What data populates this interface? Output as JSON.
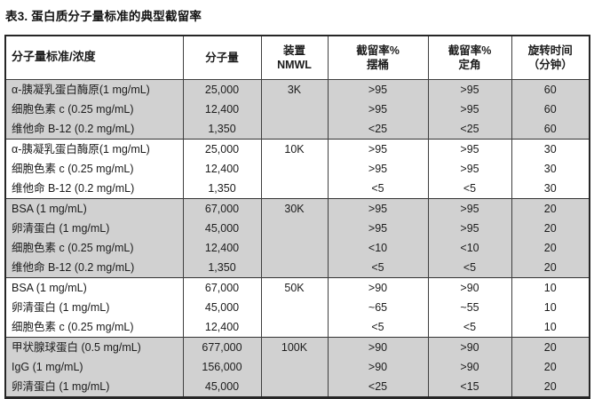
{
  "title": "表3. 蛋白质分子量标准的典型截留率",
  "table": {
    "headers": [
      "分子量标准/浓度",
      "分子量",
      "装置\nNMWL",
      "截留率%\n摆桶",
      "截留率%\n定角",
      "旋转时间\n（分钟）"
    ],
    "groups": [
      {
        "nmwl": "3K",
        "shaded": true,
        "rows": [
          {
            "standard": "α-胰凝乳蛋白酶原(1 mg/mL)",
            "mw": "25,000",
            "bucket": ">95",
            "angle": ">95",
            "time": "60"
          },
          {
            "standard": "细胞色素 c (0.25 mg/mL)",
            "mw": "12,400",
            "bucket": ">95",
            "angle": ">95",
            "time": "60"
          },
          {
            "standard": "维他命 B-12 (0.2 mg/mL)",
            "mw": "1,350",
            "bucket": "<25",
            "angle": "<25",
            "time": "60"
          }
        ]
      },
      {
        "nmwl": "10K",
        "shaded": false,
        "rows": [
          {
            "standard": "α-胰凝乳蛋白酶原(1 mg/mL)",
            "mw": "25,000",
            "bucket": ">95",
            "angle": ">95",
            "time": "30"
          },
          {
            "standard": "细胞色素 c (0.25 mg/mL)",
            "mw": "12,400",
            "bucket": ">95",
            "angle": ">95",
            "time": "30"
          },
          {
            "standard": "维他命 B-12 (0.2 mg/mL)",
            "mw": "1,350",
            "bucket": "<5",
            "angle": "<5",
            "time": "30"
          }
        ]
      },
      {
        "nmwl": "30K",
        "shaded": true,
        "rows": [
          {
            "standard": "BSA (1 mg/mL)",
            "mw": "67,000",
            "bucket": ">95",
            "angle": ">95",
            "time": "20"
          },
          {
            "standard": "卵清蛋白 (1 mg/mL)",
            "mw": "45,000",
            "bucket": ">95",
            "angle": ">95",
            "time": "20"
          },
          {
            "standard": "细胞色素 c (0.25 mg/mL)",
            "mw": "12,400",
            "bucket": "<10",
            "angle": "<10",
            "time": "20"
          },
          {
            "standard": "维他命 B-12 (0.2 mg/mL)",
            "mw": "1,350",
            "bucket": "<5",
            "angle": "<5",
            "time": "20"
          }
        ]
      },
      {
        "nmwl": "50K",
        "shaded": false,
        "rows": [
          {
            "standard": "BSA (1 mg/mL)",
            "mw": "67,000",
            "bucket": ">90",
            "angle": ">90",
            "time": "10"
          },
          {
            "standard": "卵清蛋白 (1 mg/mL)",
            "mw": "45,000",
            "bucket": "~65",
            "angle": "~55",
            "time": "10"
          },
          {
            "standard": "细胞色素 c (0.25 mg/mL)",
            "mw": "12,400",
            "bucket": "<5",
            "angle": "<5",
            "time": "10"
          }
        ]
      },
      {
        "nmwl": "100K",
        "shaded": true,
        "rows": [
          {
            "standard": "甲状腺球蛋白 (0.5 mg/mL)",
            "mw": "677,000",
            "bucket": ">90",
            "angle": ">90",
            "time": "20"
          },
          {
            "standard": "IgG (1 mg/mL)",
            "mw": "156,000",
            "bucket": ">90",
            "angle": ">90",
            "time": "20"
          },
          {
            "standard": "卵清蛋白 (1 mg/mL)",
            "mw": "45,000",
            "bucket": "<25",
            "angle": "<15",
            "time": "20"
          }
        ]
      }
    ]
  },
  "colors": {
    "shaded_row": "#d1d1d1",
    "border": "#3f3f3f",
    "outer_border": "#262626",
    "text": "#1c1c1c"
  }
}
